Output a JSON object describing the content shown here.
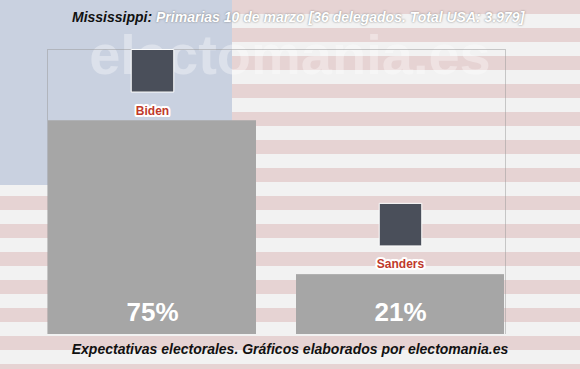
{
  "chart_data": {
    "type": "bar",
    "title": "Mississippi:",
    "subtitle": "Primarias 10 de marzo [36 delegados. Total USA: 3.979]",
    "caption": "Expectativas electorales. Gráficos elaborados por electomania.es",
    "watermark": "electomania.es",
    "categories": [
      "Biden",
      "Sanders"
    ],
    "values": [
      75,
      21
    ],
    "value_labels": [
      "75%",
      "21%"
    ],
    "color": "#a6a6a6",
    "ylim": [
      0,
      100
    ],
    "data_labels": true,
    "tick_labels": false,
    "grid": false
  }
}
